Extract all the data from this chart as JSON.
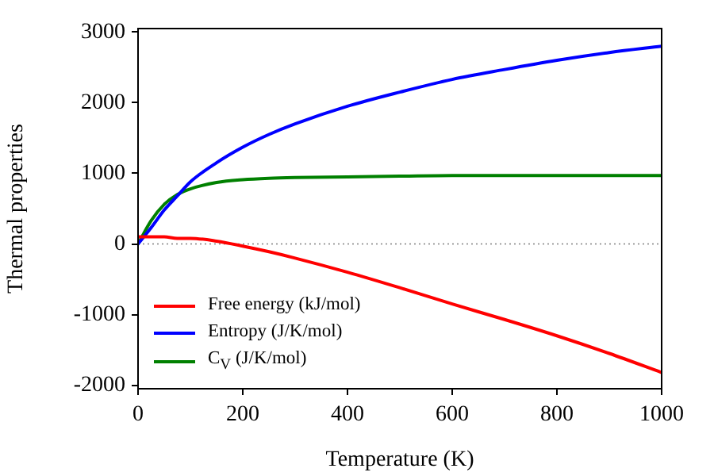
{
  "chart_data": {
    "type": "line",
    "xlabel": "Temperature (K)",
    "ylabel": "Thermal properties",
    "x": [
      0,
      25,
      50,
      75,
      100,
      150,
      200,
      250,
      300,
      400,
      500,
      600,
      700,
      800,
      900,
      1000
    ],
    "series": [
      {
        "name": "Free energy (kJ/mol)",
        "color": "#ff0000",
        "values": [
          100,
          100,
          100,
          80,
          80,
          40,
          -30,
          -110,
          -200,
          -400,
          -620,
          -850,
          -1070,
          -1300,
          -1550,
          -1820
        ]
      },
      {
        "name": "Entropy (J/K/mol)",
        "color": "#0000ff",
        "values": [
          0,
          230,
          480,
          680,
          880,
          1150,
          1370,
          1550,
          1700,
          1950,
          2150,
          2330,
          2470,
          2600,
          2710,
          2800
        ]
      },
      {
        "name": "C$_{V}$ (J/K/mol)",
        "color": "#008000",
        "values": [
          0,
          330,
          560,
          700,
          780,
          870,
          910,
          930,
          940,
          950,
          960,
          970,
          970,
          970,
          970,
          970
        ]
      }
    ],
    "xlim": [
      0,
      1000
    ],
    "xticks": [
      0,
      200,
      400,
      600,
      800,
      1000
    ],
    "ylim": [
      -2050,
      3050
    ],
    "yticks": [
      -2000,
      -1000,
      0,
      1000,
      2000,
      3000
    ],
    "ref_lines": [
      {
        "axis": "y",
        "value": 0,
        "color": "#808080",
        "line_style": "dotted"
      }
    ],
    "legend": "bottom left",
    "marker": "none",
    "line_style": "solid",
    "grid": false
  }
}
